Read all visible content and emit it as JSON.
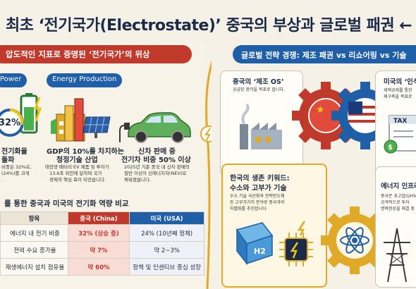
{
  "title": "최초 ‘전기국가(Electrostate)’ 중국의 부상과 글로벌 패권 ←",
  "left": {
    "header": "압도적인 지표로 증명된 ‘전기국가’의 위상",
    "stats": [
      {
        "tag": "Power",
        "big_value": "32%",
        "heading_line1": "전기화율",
        "heading_line2": "돌파",
        "body_line1": "비중은 32%로,",
        "body_line2": "(24%)를 크게",
        "body_line3": "."
      },
      {
        "tag": "Energy Production",
        "heading_line1": "GDP의 10%를 차지하는",
        "heading_line2": "청정기술 산업",
        "body_line1": "태양광·배터리·EV 제품 및 투자가",
        "body_line2": "13.6조 위안에 달하며 국가",
        "body_line3": "경제의 핵심 축이 되었습니다."
      },
      {
        "heading_line1": "신차 판매 중",
        "heading_line2": "전기차 비중 50% 이상",
        "body_line1": "2025년 기준 중국 내 신차 판매의",
        "body_line2": "절반 이상이 신에너지차(NEV)로",
        "body_line3": "채워졌습니다."
      }
    ],
    "table": {
      "heading": "를 통한 중국과 미국의 전기화 역량 비교",
      "columns": [
        "항목",
        "중국 (China)",
        "미국 (USA)"
      ],
      "rows": [
        {
          "item": "에너지 내 전기 비중",
          "china": "32% (상승 중)",
          "usa": "24% (10년째 정체)"
        },
        {
          "item": "전력 수요 증가율",
          "china": "약 7%",
          "usa": "약 2~3%"
        },
        {
          "item": "재생에너지 설치 점유율",
          "china": "약 60%",
          "usa": "정책 및 인센티브 중심 성장"
        }
      ]
    }
  },
  "right": {
    "header": "글로벌 전략 경쟁: 제조 패권 vs 리쇼어링 vs 기술",
    "cards": [
      {
        "heading": "중국의 ‘제조 OS’",
        "body_line1": "공급망 장악을 목표로 합니다."
      },
      {
        "heading": "미국의 ‘인식",
        "body_line1": "세액공제를 통한",
        "body_line2": "제구축을 목표로"
      },
      {
        "heading_line1": "한국의 생존 키워드:",
        "heading_line2": "수소와 고부가 기술",
        "body_line1": "수소 기술 국산화와 전력반도체",
        "body_line2": "등 고부가가치 분야로 중국과의",
        "body_line3": "차별화를 추진합니다."
      },
      {
        "heading": "에너지 인프라",
        "body_line1": "중국은 초고압(UHV)",
        "body_line2": "공격적으로 투자",
        "body_line3": "병목현상을 해결 중"
      }
    ],
    "tax_label": "TAX",
    "h2_label": "H2"
  },
  "colors": {
    "china_red": "#c0392b",
    "usa_blue": "#1f5fa8",
    "gold": "#e0a928",
    "navy": "#1a2b4a"
  },
  "icons": [
    "battery-icon",
    "factory-icon",
    "solar-panel-icon",
    "ev-car-icon",
    "gear-icon",
    "china-flag-icon",
    "us-flag-icon",
    "tax-document-icon",
    "atom-icon",
    "hydrogen-tank-icon",
    "chip-icon",
    "power-tower-icon",
    "lightning-icon"
  ]
}
